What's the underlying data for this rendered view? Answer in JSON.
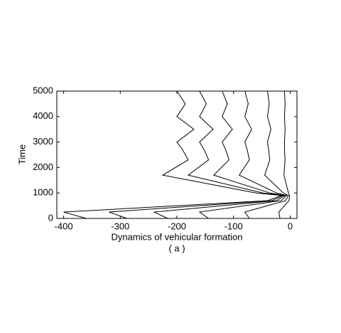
{
  "chart_data": {
    "type": "line",
    "xlabel": "Dynamics of vehicular formation",
    "subtitle": "( a )",
    "ylabel": "Time",
    "y": [
      0,
      250,
      700,
      900,
      1000,
      1700,
      2300,
      2700,
      3000,
      3500,
      4000,
      4500,
      5000
    ],
    "series": [
      {
        "color": "#000000",
        "values": [
          -360,
          -400,
          -40,
          -15,
          -60,
          -225,
          -180,
          -190,
          -200,
          -170,
          -200,
          -185,
          -200
        ]
      },
      {
        "color": "#000000",
        "values": [
          -288,
          -320,
          -32,
          -12,
          -48,
          -180,
          -144,
          -152,
          -160,
          -136,
          -160,
          -148,
          -160
        ]
      },
      {
        "color": "#000000",
        "values": [
          -216,
          -240,
          -24,
          -9,
          -36,
          -135,
          -108,
          -114,
          -120,
          -102,
          -120,
          -111,
          -120
        ]
      },
      {
        "color": "#000000",
        "values": [
          -144,
          -160,
          -16,
          -6,
          -24,
          -90,
          -72,
          -76,
          -80,
          -68,
          -80,
          -74,
          -80
        ]
      },
      {
        "color": "#000000",
        "values": [
          -72,
          -80,
          -8,
          -3,
          -12,
          -45,
          -36,
          -38,
          -40,
          -34,
          -40,
          -37,
          -40
        ]
      },
      {
        "color": "#000000",
        "values": [
          -18,
          -20,
          -2,
          -1,
          -3,
          -11,
          -9,
          -10,
          -10,
          -9,
          -10,
          -9,
          -10
        ]
      }
    ],
    "xlim": [
      -412,
      12
    ],
    "xticks": [
      -400,
      -300,
      -200,
      -100,
      0
    ],
    "ylim": [
      0,
      5000
    ],
    "yticks": [
      0,
      1000,
      2000,
      3000,
      4000,
      5000
    ]
  }
}
